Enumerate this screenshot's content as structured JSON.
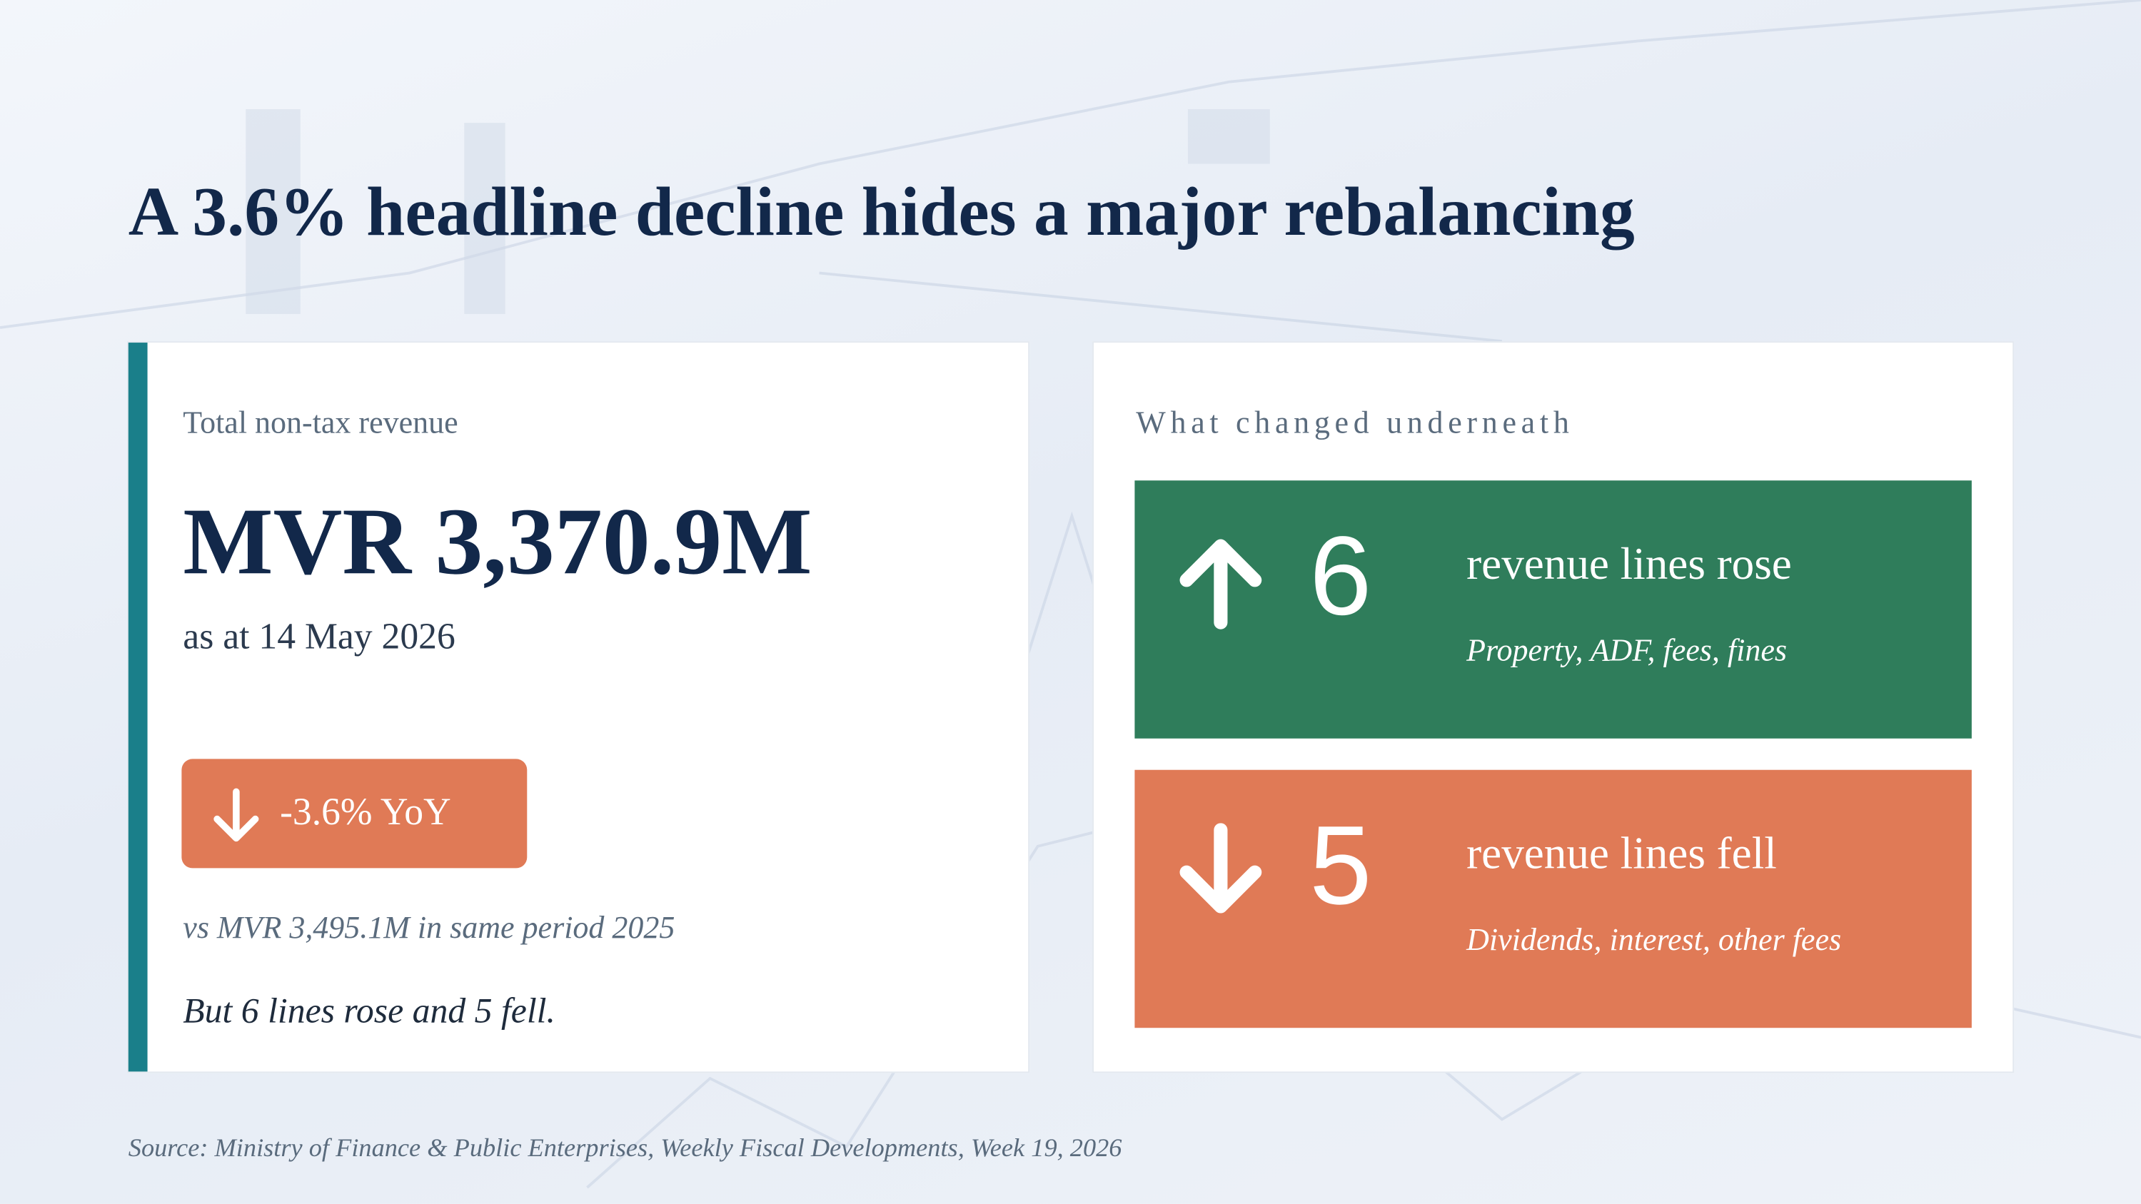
{
  "title": "A 3.6% headline decline hides a major rebalancing",
  "summary": {
    "label": "Total non-tax revenue",
    "value": "MVR 3,370.9M",
    "date": "as at 14 May 2026",
    "change": "-3.6% YoY",
    "comparison": "vs MVR 3,495.1M in same period 2025",
    "note": "But 6 lines rose and 5 fell."
  },
  "breakdown": {
    "heading": "What changed underneath",
    "rows": [
      {
        "count": 6,
        "label": "revenue lines rose",
        "detail": "Property, ADF, fees, fines"
      },
      {
        "count": 5,
        "label": "revenue lines fell",
        "detail": "Dividends, interest, other fees"
      }
    ]
  },
  "source": "Source: Ministry of Finance & Public Enterprises, Weekly Fiscal Developments, Week 19, 2026"
}
